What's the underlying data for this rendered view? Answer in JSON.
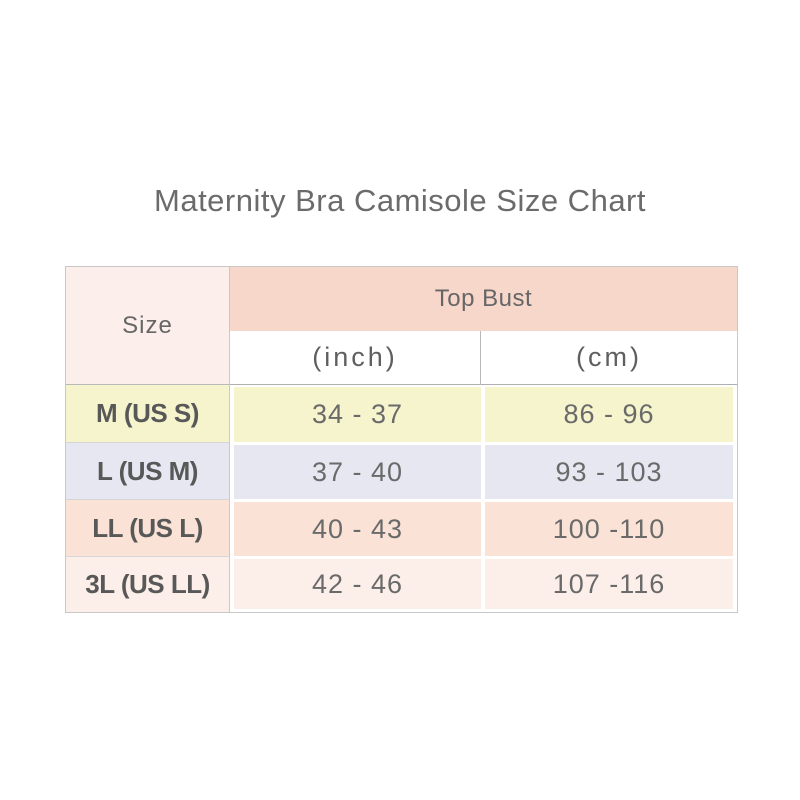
{
  "title": "Maternity Bra Camisole Size Chart",
  "colors": {
    "page_bg": "#ffffff",
    "table_border": "#c8c8c8",
    "size_header_bg": "#fbeeeb",
    "top_bust_bg": "#f8d7cb",
    "unit_header_bg": "#ffffff",
    "title_text": "#6b6b6b",
    "label_text": "#585858",
    "value_text": "#6a6a6a"
  },
  "table": {
    "size_column_header": "Size",
    "group_header": "Top Bust",
    "unit_headers": [
      "(inch)",
      "(cm)"
    ],
    "rows": [
      {
        "size": "M (US S)",
        "inch": "34 - 37",
        "cm": "86 - 96",
        "bg": "#f6f4cc"
      },
      {
        "size": "L (US M)",
        "inch": "37 - 40",
        "cm": "93 - 103",
        "bg": "#e7e7f1"
      },
      {
        "size": "LL (US L)",
        "inch": "40 - 43",
        "cm": "100 -110",
        "bg": "#fae3d6"
      },
      {
        "size": "3L (US LL)",
        "inch": "42 - 46",
        "cm": "107 -116",
        "bg": "#fceee9"
      }
    ]
  },
  "chart_data": {
    "type": "table",
    "title": "Maternity Bra Camisole Size Chart",
    "columns": [
      "Size",
      "Top Bust (inch)",
      "Top Bust (cm)"
    ],
    "rows": [
      [
        "M (US S)",
        "34 - 37",
        "86 - 96"
      ],
      [
        "L (US M)",
        "37 - 40",
        "93 - 103"
      ],
      [
        "LL (US L)",
        "40 - 43",
        "100 -110"
      ],
      [
        "3L (US LL)",
        "42 - 46",
        "107 -116"
      ]
    ]
  }
}
